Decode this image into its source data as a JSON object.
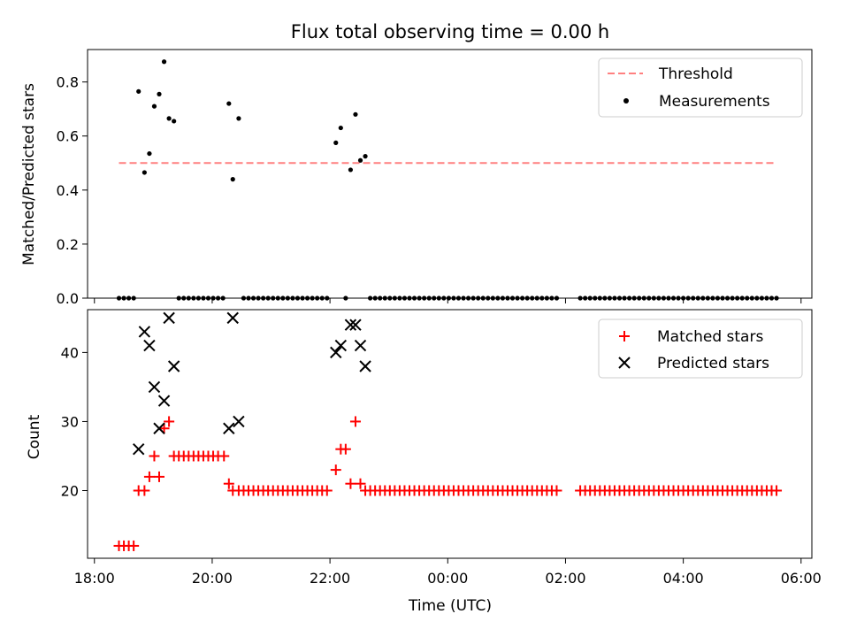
{
  "chart_data": [
    {
      "type": "scatter",
      "title": "Flux total observing time = 0.00 h",
      "xlabel": "",
      "ylabel": "Matched/Predicted stars",
      "ylim": [
        0,
        0.92
      ],
      "yticks": [
        0.0,
        0.2,
        0.4,
        0.6,
        0.8
      ],
      "ytick_labels": [
        "0.0",
        "0.2",
        "0.4",
        "0.6",
        "0.8"
      ],
      "legend_position": "top-right",
      "threshold": {
        "name": "Threshold",
        "value": 0.5,
        "x_start": "18:25",
        "x_end": "05:35",
        "color": "#ff8080",
        "style": "dashed"
      },
      "series": [
        {
          "name": "Measurements",
          "color": "#000000",
          "marker": "dot",
          "points": [
            [
              "18:45",
              0.765
            ],
            [
              "18:51",
              0.465
            ],
            [
              "18:56",
              0.535
            ],
            [
              "19:01",
              0.71
            ],
            [
              "19:06",
              0.755
            ],
            [
              "19:11",
              0.875
            ],
            [
              "19:16",
              0.665
            ],
            [
              "19:21",
              0.655
            ],
            [
              "20:17",
              0.72
            ],
            [
              "20:21",
              0.44
            ],
            [
              "20:27",
              0.665
            ],
            [
              "22:06",
              0.575
            ],
            [
              "22:11",
              0.63
            ],
            [
              "22:21",
              0.475
            ],
            [
              "22:26",
              0.68
            ],
            [
              "22:31",
              0.51
            ],
            [
              "22:36",
              0.525
            ]
          ],
          "zero_segments": [
            [
              "18:25",
              "18:40"
            ],
            [
              "19:26",
              "20:12"
            ],
            [
              "20:32",
              "22:01"
            ],
            [
              "22:16",
              "22:16"
            ],
            [
              "22:41",
              "01:55"
            ],
            [
              "02:15",
              "05:35"
            ]
          ]
        }
      ]
    },
    {
      "type": "scatter",
      "title": "",
      "xlabel": "Time (UTC)",
      "ylabel": "Count",
      "ylim": [
        10.2,
        46.2
      ],
      "yticks": [
        20,
        30,
        40
      ],
      "ytick_labels": [
        "20",
        "30",
        "40"
      ],
      "legend_position": "top-right",
      "x_range": [
        "17:53",
        "06:11"
      ],
      "xticks": [
        "18:00",
        "20:00",
        "22:00",
        "00:00",
        "02:00",
        "04:00",
        "06:00"
      ],
      "xtick_labels": [
        "18:00",
        "20:00",
        "22:00",
        "00:00",
        "02:00",
        "04:00",
        "06:00"
      ],
      "series": [
        {
          "name": "Matched stars",
          "color": "#ff0000",
          "marker": "plus",
          "points": [
            [
              "18:25",
              12
            ],
            [
              "18:30",
              12
            ],
            [
              "18:35",
              12
            ],
            [
              "18:40",
              12
            ],
            [
              "18:45",
              20
            ],
            [
              "18:51",
              20
            ],
            [
              "18:56",
              22
            ],
            [
              "19:01",
              25
            ],
            [
              "19:06",
              22
            ],
            [
              "19:11",
              29
            ],
            [
              "19:16",
              30
            ],
            [
              "19:21",
              25
            ],
            [
              "19:26",
              25
            ],
            [
              "19:31",
              25
            ],
            [
              "19:36",
              25
            ],
            [
              "19:41",
              25
            ],
            [
              "19:46",
              25
            ],
            [
              "19:51",
              25
            ],
            [
              "19:56",
              25
            ],
            [
              "20:01",
              25
            ],
            [
              "20:06",
              25
            ],
            [
              "20:12",
              25
            ],
            [
              "20:17",
              21
            ],
            [
              "20:21",
              20
            ],
            [
              "20:27",
              20
            ],
            [
              "22:06",
              23
            ],
            [
              "22:11",
              26
            ],
            [
              "22:16",
              26
            ],
            [
              "22:21",
              21
            ],
            [
              "22:26",
              30
            ],
            [
              "22:31",
              21
            ]
          ],
          "constant_segments": [
            {
              "from": "20:32",
              "to": "22:01",
              "value": 20
            },
            {
              "from": "22:36",
              "to": "01:55",
              "value": 20
            },
            {
              "from": "02:15",
              "to": "05:35",
              "value": 20
            }
          ]
        },
        {
          "name": "Predicted stars",
          "color": "#000000",
          "marker": "x",
          "points": [
            [
              "18:45",
              26
            ],
            [
              "18:51",
              43
            ],
            [
              "18:56",
              41
            ],
            [
              "19:01",
              35
            ],
            [
              "19:06",
              29
            ],
            [
              "19:11",
              33
            ],
            [
              "19:16",
              45
            ],
            [
              "19:21",
              38
            ],
            [
              "20:17",
              29
            ],
            [
              "20:21",
              45
            ],
            [
              "20:27",
              30
            ],
            [
              "22:06",
              40
            ],
            [
              "22:11",
              41
            ],
            [
              "22:21",
              44
            ],
            [
              "22:26",
              44
            ],
            [
              "22:31",
              41
            ],
            [
              "22:36",
              38
            ]
          ]
        }
      ]
    }
  ]
}
